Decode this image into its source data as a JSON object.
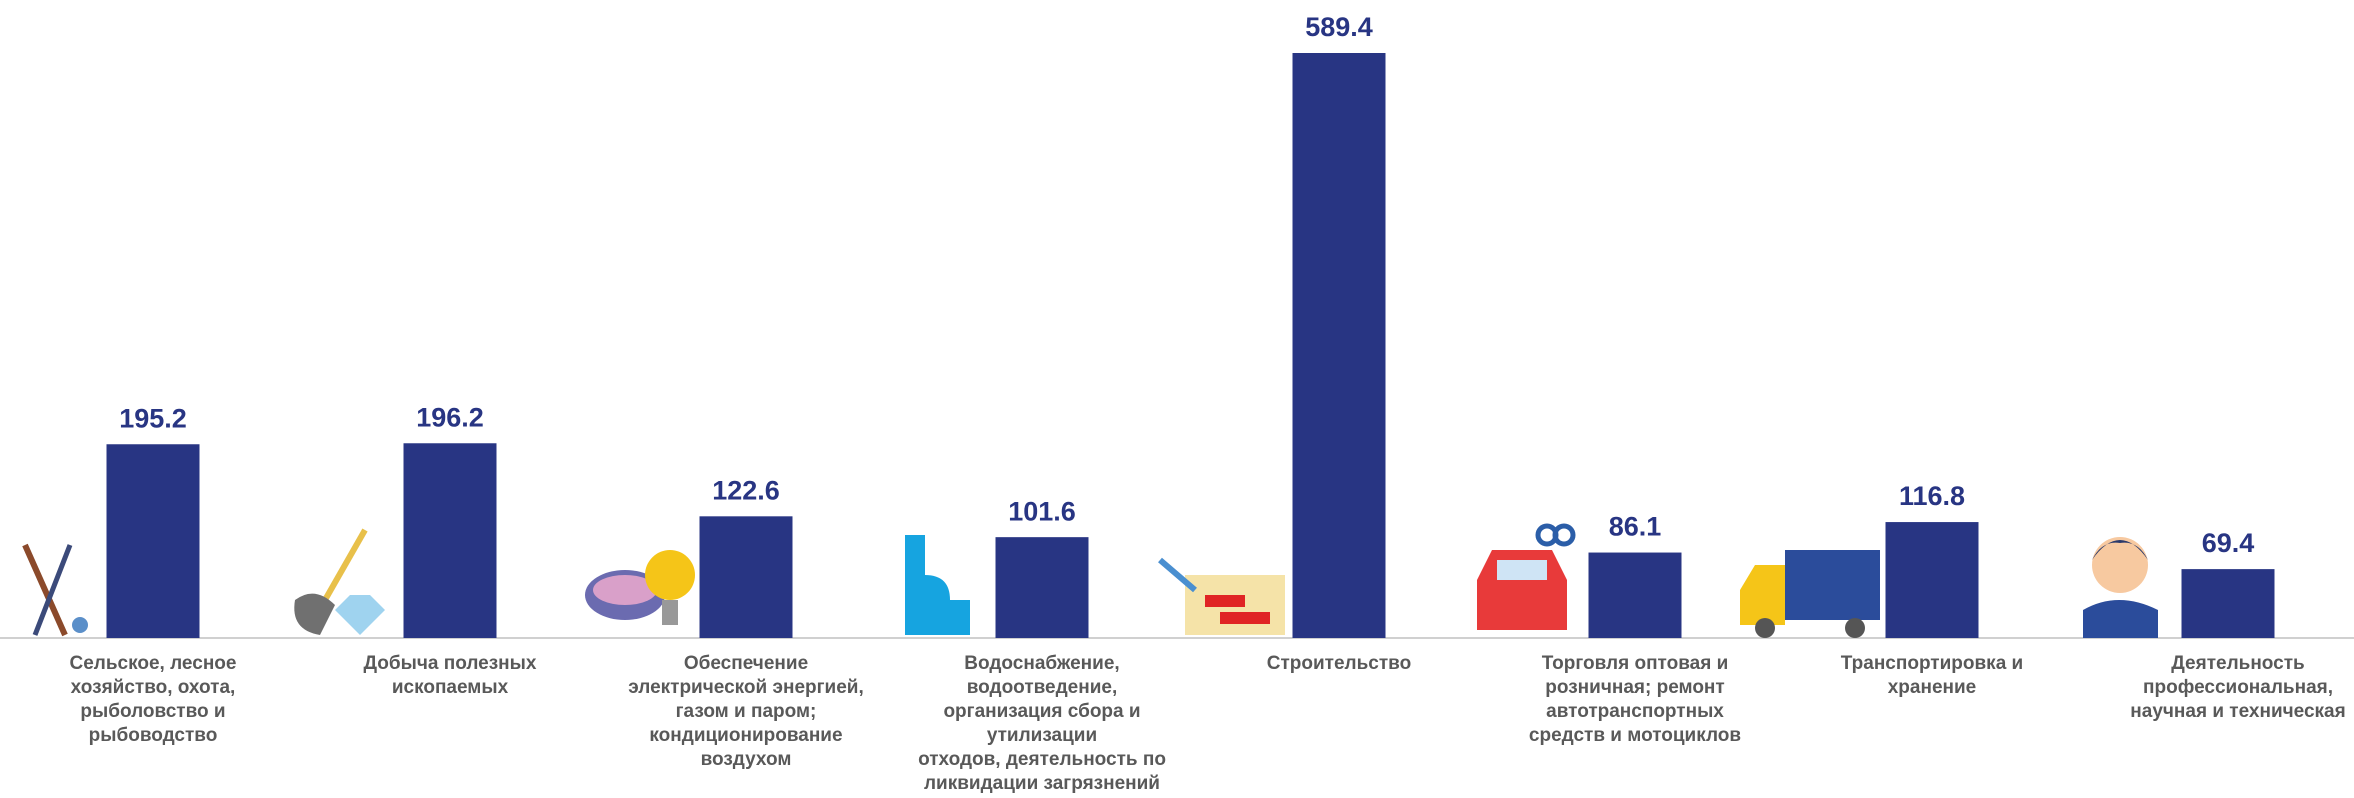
{
  "chart_data": {
    "type": "bar",
    "categories": [
      "Сельское, лесное\nхозяйство, охота,\nрыболовство и\nрыбоводство",
      "Добыча полезных\nископаемых",
      "Обеспечение\nэлектрической энергией,\nгазом и паром;\nкондиционирование\nвоздухом",
      "Водоснабжение,\nводоотведение,\nорганизация сбора и\nутилизации\nотходов, деятельность по\nликвидации загрязнений",
      "Строительство",
      "Торговля оптовая и\nрозничная; ремонт\nавтотранспортных\nсредств и мотоциклов",
      "Транспортировка и\nхранение",
      "Деятельность\nпрофессиональная,\nнаучная и техническая"
    ],
    "values": [
      195.2,
      196.2,
      122.6,
      101.6,
      589.4,
      86.1,
      116.8,
      69.4
    ],
    "color": "#283583"
  }
}
